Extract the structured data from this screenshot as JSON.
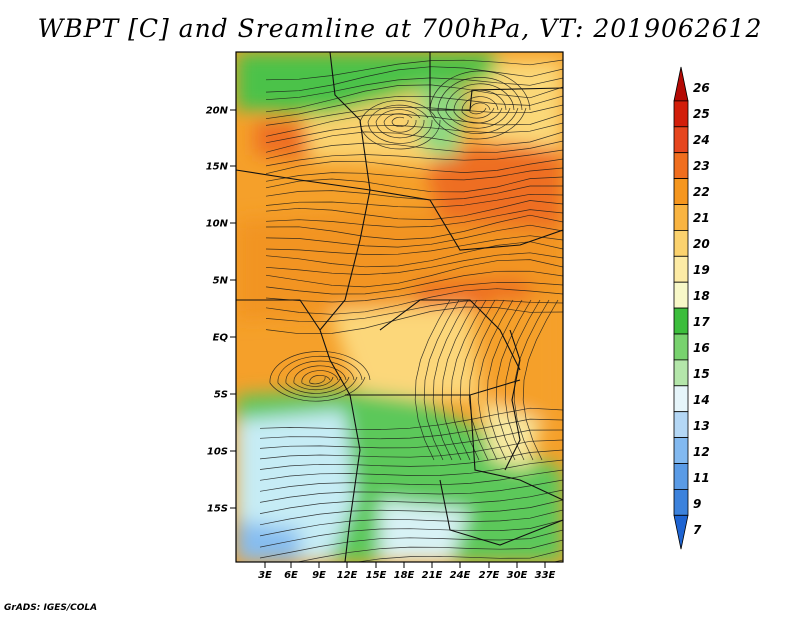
{
  "title": "WBPT [C] and Sreamline at 700hPa, VT: 2019062612",
  "credit": "GrADS: IGES/COLA",
  "map": {
    "lat_labels": [
      "20N",
      "15N",
      "10N",
      "5N",
      "EQ",
      "5S",
      "10S",
      "15S"
    ],
    "lon_labels": [
      "3E",
      "6E",
      "9E",
      "12E",
      "15E",
      "18E",
      "21E",
      "24E",
      "27E",
      "30E",
      "33E"
    ]
  },
  "colorbar": {
    "labels": [
      "26",
      "25",
      "24",
      "23",
      "22",
      "21",
      "20",
      "19",
      "18",
      "17",
      "16",
      "15",
      "14",
      "13",
      "12",
      "11",
      "9",
      "7"
    ],
    "colors": [
      "#b40a05",
      "#d21e0a",
      "#e6461e",
      "#f06e1e",
      "#f5961e",
      "#f9b441",
      "#fbd26e",
      "#fdeba5",
      "#f8f8c8",
      "#3cbe3c",
      "#78d26e",
      "#b4e6aa",
      "#e6f5fa",
      "#b4d7f5",
      "#82b9f0",
      "#5a9be6",
      "#3c82dc",
      "#1e64d2"
    ]
  }
}
